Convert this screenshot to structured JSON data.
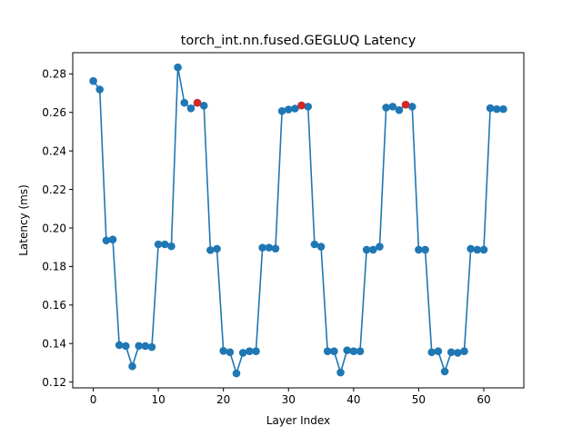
{
  "chart_data": {
    "type": "scatter",
    "title": "torch_int.nn.fused.GEGLUQ Latency",
    "xlabel": "Layer Index",
    "ylabel": "Latency (ms)",
    "xlim": [
      -3.15,
      66.15
    ],
    "ylim": [
      0.117,
      0.291
    ],
    "xticks": [
      "0",
      "10",
      "20",
      "30",
      "40",
      "50",
      "60"
    ],
    "yticks": [
      "0.12",
      "0.14",
      "0.16",
      "0.18",
      "0.20",
      "0.22",
      "0.24",
      "0.26",
      "0.28"
    ],
    "grid": false,
    "line_color": "#1f77b4",
    "marker_color": "#1f77b4",
    "highlight_color": "#d62728",
    "series": [
      {
        "x": [
          0,
          1,
          2,
          3,
          4,
          5,
          6,
          7,
          8,
          9,
          10,
          11,
          12,
          13,
          14,
          15,
          16,
          17,
          18,
          19,
          20,
          21,
          22,
          23,
          24,
          25,
          26,
          27,
          28,
          29,
          30,
          31,
          32,
          33,
          34,
          35,
          36,
          37,
          38,
          39,
          40,
          41,
          42,
          43,
          44,
          45,
          46,
          47,
          48,
          49,
          50,
          51,
          52,
          53,
          54,
          55,
          56,
          57,
          58,
          59,
          60,
          61,
          62,
          63
        ],
        "values": [
          0.2763,
          0.2719,
          0.1935,
          0.194,
          0.1392,
          0.1387,
          0.1282,
          0.1388,
          0.1387,
          0.1382,
          0.1915,
          0.1915,
          0.1905,
          0.2834,
          0.265,
          0.2621,
          0.265,
          0.2635,
          0.1885,
          0.1892,
          0.1362,
          0.1355,
          0.1245,
          0.1352,
          0.136,
          0.136,
          0.1898,
          0.1898,
          0.1893,
          0.2607,
          0.2615,
          0.262,
          0.2636,
          0.263,
          0.1915,
          0.1903,
          0.136,
          0.136,
          0.125,
          0.1365,
          0.136,
          0.136,
          0.1887,
          0.1887,
          0.1903,
          0.2625,
          0.263,
          0.2612,
          0.264,
          0.263,
          0.1887,
          0.1887,
          0.1355,
          0.136,
          0.1255,
          0.1355,
          0.1352,
          0.136,
          0.1892,
          0.1887,
          0.1887,
          0.2622,
          0.2617,
          0.2617
        ]
      }
    ],
    "highlighted_points": [
      {
        "x": 16,
        "y": 0.265
      },
      {
        "x": 32,
        "y": 0.2636
      },
      {
        "x": 48,
        "y": 0.264
      }
    ]
  }
}
